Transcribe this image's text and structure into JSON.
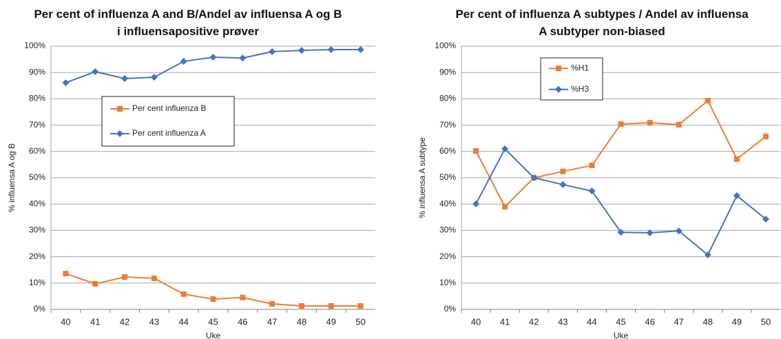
{
  "chart_data": [
    {
      "type": "line",
      "title": "Per cent of influenza A and B/Andel av influensa A og B i influensapositive prøver",
      "x_label": "Uke",
      "y_label": "% influensa A og  B",
      "categories": [
        "40",
        "41",
        "42",
        "43",
        "44",
        "45",
        "46",
        "47",
        "48",
        "49",
        "50"
      ],
      "series": [
        {
          "name": "Per cent influenza B",
          "color": "#ed7d31",
          "marker": "square",
          "values": [
            13.6,
            9.7,
            12.3,
            11.8,
            5.8,
            3.9,
            4.5,
            2.1,
            1.3,
            1.3,
            1.3
          ]
        },
        {
          "name": "Per cent influenza A",
          "color": "#4472c4",
          "marker": "diamond",
          "values": [
            86.1,
            90.3,
            87.7,
            88.2,
            94.2,
            95.8,
            95.5,
            97.9,
            98.4,
            98.7,
            98.7
          ]
        }
      ],
      "ylim": [
        0,
        100
      ],
      "yticks": [
        {
          "value": 0,
          "label": "0%"
        },
        {
          "value": 10,
          "label": "10%"
        },
        {
          "value": 20,
          "label": "20%"
        },
        {
          "value": 30,
          "label": "30%"
        },
        {
          "value": 40,
          "label": "40%"
        },
        {
          "value": 50,
          "label": "50%"
        },
        {
          "value": 60,
          "label": "60%"
        },
        {
          "value": 70,
          "label": "70%"
        },
        {
          "value": 80,
          "label": "80%"
        },
        {
          "value": 90,
          "label": "90%"
        },
        {
          "value": 100,
          "label": "100%"
        }
      ],
      "grid": true
    },
    {
      "type": "line",
      "title": "Per cent of influenza A subtypes / Andel av influensa A subtyper non-biased",
      "x_label": "Uke",
      "y_label": "% influensa A subtype",
      "categories": [
        "40",
        "41",
        "42",
        "43",
        "44",
        "45",
        "46",
        "47",
        "48",
        "49",
        "50"
      ],
      "series": [
        {
          "name": "%H1",
          "color": "#ed7d31",
          "marker": "square",
          "values": [
            60.2,
            39.0,
            50.0,
            52.4,
            54.7,
            70.4,
            70.9,
            70.2,
            79.3,
            57.1,
            65.7
          ]
        },
        {
          "name": "%H3",
          "color": "#4472c4",
          "marker": "diamond",
          "values": [
            40.1,
            61.0,
            50.0,
            47.4,
            45.0,
            29.3,
            29.1,
            29.8,
            20.7,
            43.2,
            34.3
          ]
        }
      ],
      "ylim": [
        0,
        100
      ],
      "yticks": [
        {
          "value": 0,
          "label": "0%"
        },
        {
          "value": 10,
          "label": "10%"
        },
        {
          "value": 20,
          "label": "20%"
        },
        {
          "value": 30,
          "label": "30%"
        },
        {
          "value": 40,
          "label": "40%"
        },
        {
          "value": 50,
          "label": "50%"
        },
        {
          "value": 60,
          "label": "60%"
        },
        {
          "value": 70,
          "label": "70%"
        },
        {
          "value": 80,
          "label": "80%"
        },
        {
          "value": 90,
          "label": "90%"
        },
        {
          "value": 100,
          "label": "100%"
        }
      ],
      "grid": true
    }
  ]
}
